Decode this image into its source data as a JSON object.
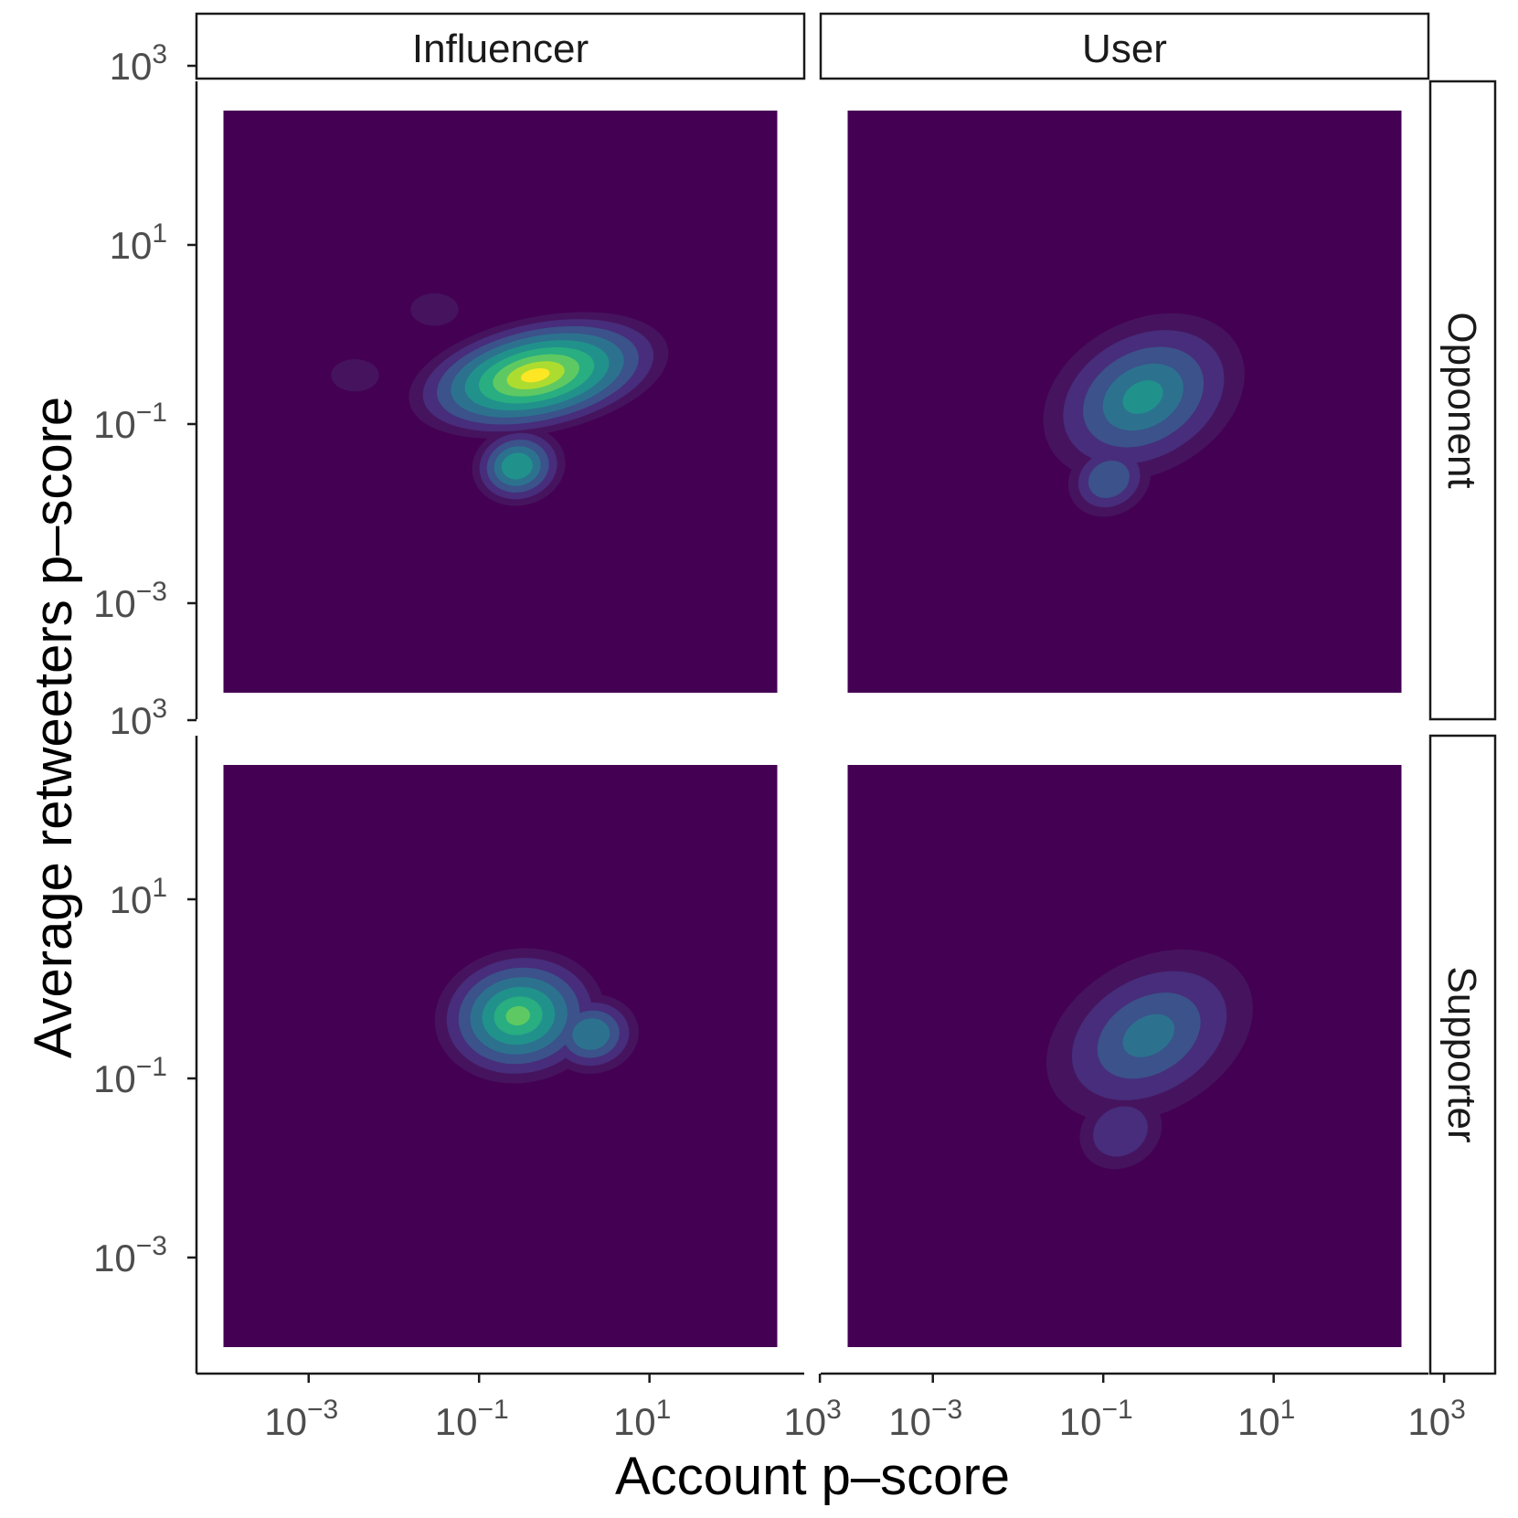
{
  "chart_data": {
    "type": "heatmap",
    "subtype": "2d-density-contour",
    "xlabel": "Account p–score",
    "ylabel": "Average retweeters p–score",
    "x_scale": "log10",
    "y_scale": "log10",
    "xlim": [
      1e-05,
      1000
    ],
    "ylim": [
      1e-05,
      1000
    ],
    "x_ticks": [
      {
        "base": "10",
        "exp": "−3"
      },
      {
        "base": "10",
        "exp": "−1"
      },
      {
        "base": "10",
        "exp": "1"
      },
      {
        "base": "10",
        "exp": "3"
      }
    ],
    "y_ticks": [
      {
        "base": "10",
        "exp": "−3"
      },
      {
        "base": "10",
        "exp": "−1"
      },
      {
        "base": "10",
        "exp": "1"
      },
      {
        "base": "10",
        "exp": "3"
      }
    ],
    "column_facets": [
      "Influencer",
      "User"
    ],
    "row_facets": [
      "Opponent",
      "Supporter"
    ],
    "grid": false,
    "legend": "none",
    "colors": {
      "background": "#440154",
      "levels": [
        "#46145e",
        "#472d7b",
        "#3b528b",
        "#2c728e",
        "#21918c",
        "#28ae80",
        "#5ec962",
        "#addc30",
        "#fde725"
      ]
    },
    "panels": [
      {
        "col": "Influencer",
        "row": "Opponent",
        "peak": {
          "x": 0.5,
          "y": 0.35
        },
        "peak_level": 8,
        "secondary_peaks": [
          {
            "x": 0.0035,
            "y": 0.35
          },
          {
            "x": 0.03,
            "y": 1.9
          }
        ]
      },
      {
        "col": "User",
        "row": "Opponent",
        "peak": {
          "x": 0.3,
          "y": 0.2
        },
        "peak_level": 4,
        "secondary_peaks": []
      },
      {
        "col": "Influencer",
        "row": "Supporter",
        "peak": {
          "x": 0.3,
          "y": 0.5
        },
        "peak_level": 6,
        "secondary_peaks": []
      },
      {
        "col": "User",
        "row": "Supporter",
        "peak": {
          "x": 0.35,
          "y": 0.3
        },
        "peak_level": 3,
        "secondary_peaks": []
      }
    ]
  }
}
